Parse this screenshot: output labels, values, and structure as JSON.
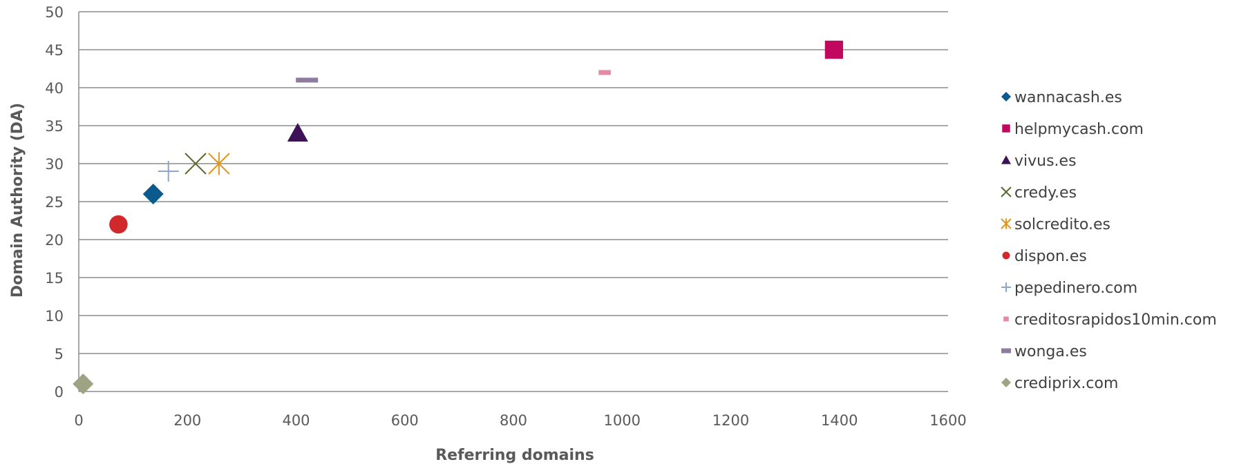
{
  "chart_data": {
    "type": "scatter",
    "xlabel": "Referring domains",
    "ylabel": "Domain Authority (DA)",
    "xlim": [
      0,
      1600
    ],
    "ylim": [
      0,
      50
    ],
    "x_ticks": [
      0,
      200,
      400,
      600,
      800,
      1000,
      1200,
      1400,
      1600
    ],
    "y_ticks": [
      0,
      5,
      10,
      15,
      20,
      25,
      30,
      35,
      40,
      45,
      50
    ],
    "grid": "horizontal",
    "legend_position": "right",
    "series": [
      {
        "name": "wannacash.es",
        "marker": "diamond",
        "color": "#0b5a8e",
        "points": [
          [
            137,
            26
          ]
        ]
      },
      {
        "name": "helpmycash.com",
        "marker": "square",
        "color": "#c2075f",
        "points": [
          [
            1390,
            45
          ]
        ]
      },
      {
        "name": "vivus.es",
        "marker": "triangle",
        "color": "#3e1256",
        "points": [
          [
            403,
            34
          ]
        ]
      },
      {
        "name": "credy.es",
        "marker": "x",
        "color": "#5b6a32",
        "points": [
          [
            215,
            30
          ]
        ]
      },
      {
        "name": "solcredito.es",
        "marker": "star",
        "color": "#e0961c",
        "points": [
          [
            258,
            30
          ]
        ]
      },
      {
        "name": "dispon.es",
        "marker": "circle",
        "color": "#d0282b",
        "points": [
          [
            73,
            22
          ]
        ]
      },
      {
        "name": "pepedinero.com",
        "marker": "plus",
        "color": "#8ea4cf",
        "points": [
          [
            165,
            29
          ]
        ]
      },
      {
        "name": "creditosrapidos10min.com",
        "marker": "short-dash",
        "color": "#e58aa4",
        "points": [
          [
            968,
            42
          ]
        ]
      },
      {
        "name": "wonga.es",
        "marker": "dash",
        "color": "#8e7ca0",
        "points": [
          [
            420,
            41
          ]
        ]
      },
      {
        "name": "crediprix.com",
        "marker": "diamond",
        "color": "#9ea384",
        "points": [
          [
            8,
            1
          ]
        ]
      }
    ]
  }
}
